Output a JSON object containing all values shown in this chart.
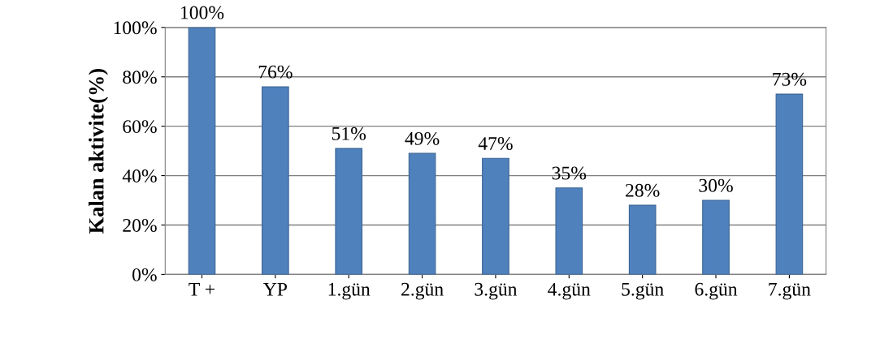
{
  "chart_data": {
    "type": "bar",
    "ylabel": "Kalan aktivite(%)",
    "categories": [
      "T +",
      "YP",
      "1.gün",
      "2.gün",
      "3.gün",
      "4.gün",
      "5.gün",
      "6.gün",
      "7.gün"
    ],
    "values": [
      100,
      76,
      51,
      49,
      47,
      35,
      28,
      30,
      73
    ],
    "value_labels": [
      "100%",
      "76%",
      "51%",
      "49%",
      "47%",
      "35%",
      "28%",
      "30%",
      "73%"
    ],
    "color": "#4f81bd",
    "ylim": [
      0,
      100
    ],
    "yticks": [
      {
        "value": 0,
        "label": "0%"
      },
      {
        "value": 20,
        "label": "20%"
      },
      {
        "value": 40,
        "label": "40%"
      },
      {
        "value": 60,
        "label": "60%"
      },
      {
        "value": 80,
        "label": "80%"
      },
      {
        "value": 100,
        "label": "100%"
      }
    ],
    "grid": "y",
    "legend": false
  }
}
